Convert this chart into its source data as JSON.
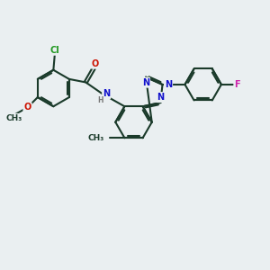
{
  "bg_color": "#eaeff1",
  "bond_color": "#1a3a2a",
  "bond_width": 1.5,
  "atom_colors": {
    "C": "#1a3a2a",
    "N": "#1111cc",
    "O": "#cc1100",
    "Cl": "#229922",
    "F": "#cc22aa",
    "H": "#777777"
  },
  "fs": 8.0,
  "sfs": 7.0
}
